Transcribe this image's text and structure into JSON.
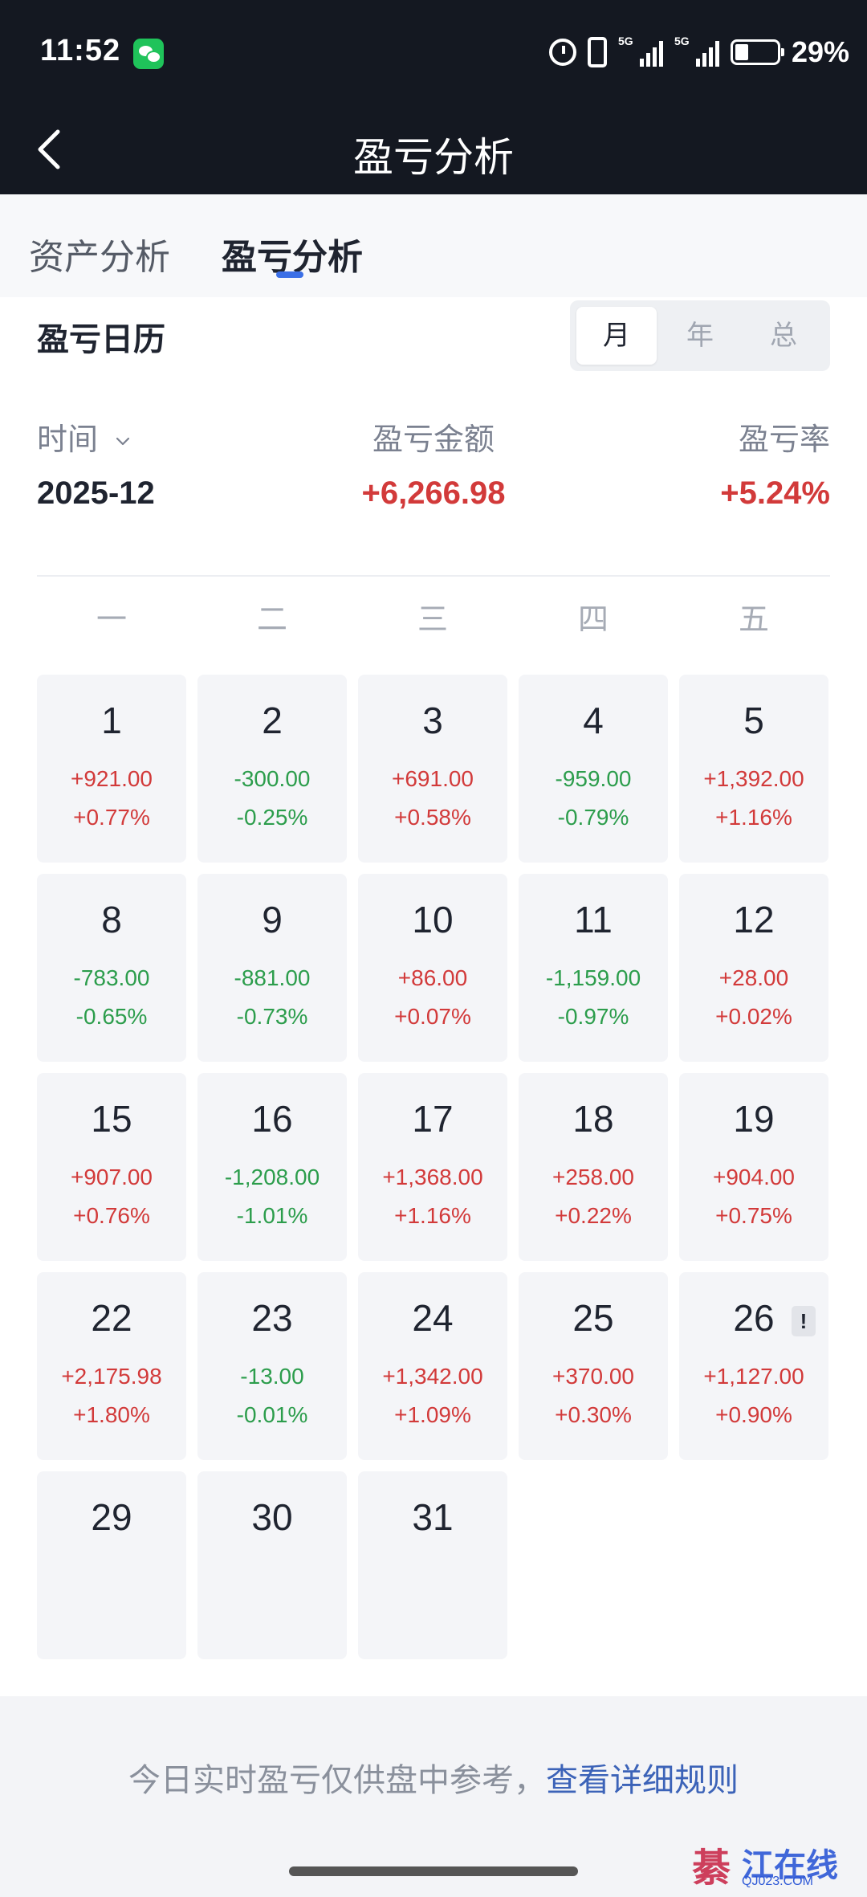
{
  "status_bar": {
    "time": "11:52",
    "battery": "29%",
    "signal1_label": "5G",
    "signal2_label": "5G",
    "icons": [
      "wechat-icon",
      "alarm-icon",
      "vibrate-icon",
      "signal-icon",
      "signal-icon",
      "battery-icon"
    ]
  },
  "header": {
    "title": "盈亏分析",
    "back_icon": "chevron-left-icon"
  },
  "tabs": [
    {
      "label": "资产分析",
      "active": false
    },
    {
      "label": "盈亏分析",
      "active": true
    }
  ],
  "calendar": {
    "title": "盈亏日历",
    "period_options": [
      {
        "label": "月",
        "active": true
      },
      {
        "label": "年",
        "active": false
      },
      {
        "label": "总",
        "active": false
      }
    ],
    "summary": {
      "time_label": "时间",
      "time_value": "2025-12",
      "amount_label": "盈亏金额",
      "amount_value": "+6,266.98",
      "rate_label": "盈亏率",
      "rate_value": "+5.24%"
    },
    "weekdays": [
      "一",
      "二",
      "三",
      "四",
      "五"
    ],
    "days": [
      {
        "day": "1",
        "amount": "+921.00",
        "pct": "+0.77%",
        "trend": "up"
      },
      {
        "day": "2",
        "amount": "-300.00",
        "pct": "-0.25%",
        "trend": "down"
      },
      {
        "day": "3",
        "amount": "+691.00",
        "pct": "+0.58%",
        "trend": "up"
      },
      {
        "day": "4",
        "amount": "-959.00",
        "pct": "-0.79%",
        "trend": "down"
      },
      {
        "day": "5",
        "amount": "+1,392.00",
        "pct": "+1.16%",
        "trend": "up"
      },
      {
        "day": "8",
        "amount": "-783.00",
        "pct": "-0.65%",
        "trend": "down"
      },
      {
        "day": "9",
        "amount": "-881.00",
        "pct": "-0.73%",
        "trend": "down"
      },
      {
        "day": "10",
        "amount": "+86.00",
        "pct": "+0.07%",
        "trend": "up"
      },
      {
        "day": "11",
        "amount": "-1,159.00",
        "pct": "-0.97%",
        "trend": "down"
      },
      {
        "day": "12",
        "amount": "+28.00",
        "pct": "+0.02%",
        "trend": "up"
      },
      {
        "day": "15",
        "amount": "+907.00",
        "pct": "+0.76%",
        "trend": "up"
      },
      {
        "day": "16",
        "amount": "-1,208.00",
        "pct": "-1.01%",
        "trend": "down"
      },
      {
        "day": "17",
        "amount": "+1,368.00",
        "pct": "+1.16%",
        "trend": "up"
      },
      {
        "day": "18",
        "amount": "+258.00",
        "pct": "+0.22%",
        "trend": "up"
      },
      {
        "day": "19",
        "amount": "+904.00",
        "pct": "+0.75%",
        "trend": "up"
      },
      {
        "day": "22",
        "amount": "+2,175.98",
        "pct": "+1.80%",
        "trend": "up"
      },
      {
        "day": "23",
        "amount": "-13.00",
        "pct": "-0.01%",
        "trend": "down"
      },
      {
        "day": "24",
        "amount": "+1,342.00",
        "pct": "+1.09%",
        "trend": "up"
      },
      {
        "day": "25",
        "amount": "+370.00",
        "pct": "+0.30%",
        "trend": "up"
      },
      {
        "day": "26",
        "amount": "+1,127.00",
        "pct": "+0.90%",
        "trend": "up",
        "flag": "!"
      },
      {
        "day": "29",
        "amount": "",
        "pct": "",
        "trend": "none"
      },
      {
        "day": "30",
        "amount": "",
        "pct": "",
        "trend": "none"
      },
      {
        "day": "31",
        "amount": "",
        "pct": "",
        "trend": "none"
      }
    ]
  },
  "footer": {
    "note": "今日实时盈亏仅供盘中参考，",
    "link": "查看详细规则"
  },
  "watermark": {
    "char": "綦",
    "name": "江在线",
    "url": "QJ023.COM"
  },
  "colors": {
    "up": "#d23a3a",
    "down": "#2c9d4c",
    "accent": "#3b6fe6",
    "header_bg": "#141821"
  }
}
